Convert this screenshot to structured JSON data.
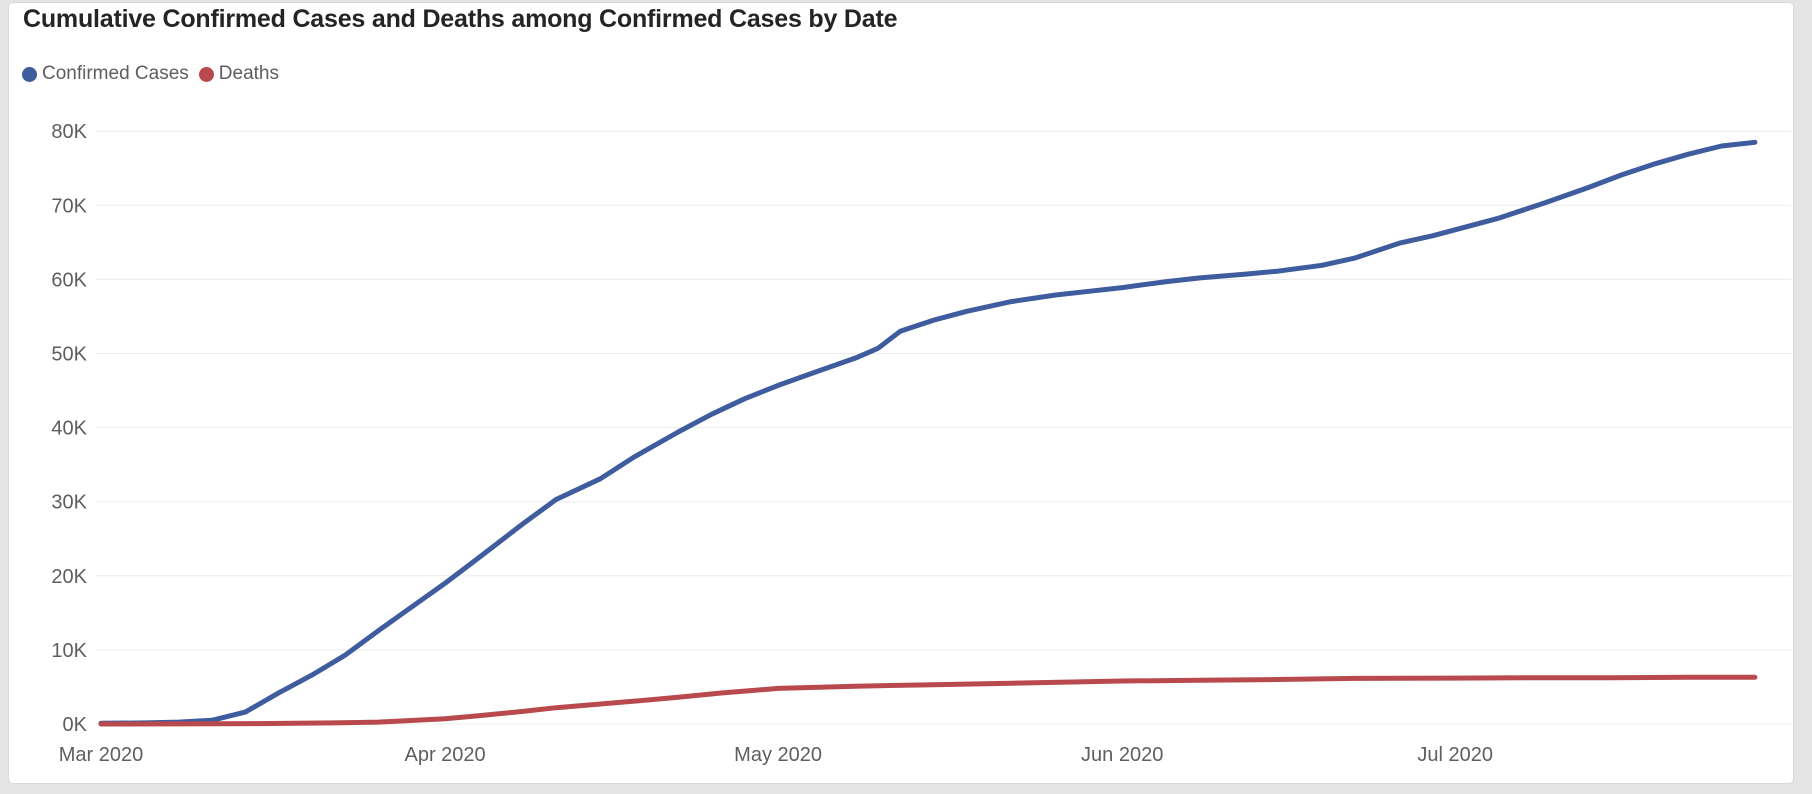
{
  "page": {
    "background_color": "#e4e4e4",
    "card_background_color": "#ffffff"
  },
  "chart_data": {
    "type": "line",
    "title": "Cumulative Confirmed Cases and Deaths among Confirmed Cases by Date",
    "legend": {
      "position": "top-left",
      "items": [
        "Confirmed Cases",
        "Deaths"
      ]
    },
    "grid": "horizontal-only",
    "colors": {
      "confirmed_cases": "#3E5C9E",
      "deaths": "#B84A4D",
      "title_text": "#252423",
      "axis_text": "#605E5C",
      "gridline": "#ECECEC"
    },
    "x_axis": {
      "label": "",
      "type": "date",
      "start": "2020-03-01",
      "end": "2020-08-01",
      "tick_dates": [
        "2020-03-01",
        "2020-04-01",
        "2020-05-01",
        "2020-06-01",
        "2020-07-01"
      ],
      "tick_labels": [
        "Mar 2020",
        "Apr 2020",
        "May 2020",
        "Jun 2020",
        "Jul 2020"
      ]
    },
    "y_axis": {
      "label": "",
      "min": 0,
      "max": 80000,
      "tick_interval": 10000,
      "tick_labels": [
        "0K",
        "10K",
        "20K",
        "30K",
        "40K",
        "50K",
        "60K",
        "70K",
        "80K"
      ]
    },
    "series": [
      {
        "name": "Confirmed Cases",
        "color": "#3E5C9E",
        "points": [
          {
            "date": "2020-03-01",
            "value": 100
          },
          {
            "date": "2020-03-05",
            "value": 150
          },
          {
            "date": "2020-03-08",
            "value": 250
          },
          {
            "date": "2020-03-11",
            "value": 500
          },
          {
            "date": "2020-03-14",
            "value": 1600
          },
          {
            "date": "2020-03-17",
            "value": 4200
          },
          {
            "date": "2020-03-20",
            "value": 6600
          },
          {
            "date": "2020-03-23",
            "value": 9300
          },
          {
            "date": "2020-03-26",
            "value": 12600
          },
          {
            "date": "2020-03-29",
            "value": 15800
          },
          {
            "date": "2020-04-01",
            "value": 19000
          },
          {
            "date": "2020-04-04",
            "value": 22400
          },
          {
            "date": "2020-04-08",
            "value": 27000
          },
          {
            "date": "2020-04-11",
            "value": 30300
          },
          {
            "date": "2020-04-15",
            "value": 33100
          },
          {
            "date": "2020-04-18",
            "value": 36000
          },
          {
            "date": "2020-04-22",
            "value": 39400
          },
          {
            "date": "2020-04-25",
            "value": 41800
          },
          {
            "date": "2020-04-28",
            "value": 43900
          },
          {
            "date": "2020-05-01",
            "value": 45700
          },
          {
            "date": "2020-05-04",
            "value": 47300
          },
          {
            "date": "2020-05-08",
            "value": 49400
          },
          {
            "date": "2020-05-10",
            "value": 50700
          },
          {
            "date": "2020-05-12",
            "value": 53000
          },
          {
            "date": "2020-05-15",
            "value": 54500
          },
          {
            "date": "2020-05-18",
            "value": 55700
          },
          {
            "date": "2020-05-22",
            "value": 57000
          },
          {
            "date": "2020-05-26",
            "value": 57900
          },
          {
            "date": "2020-05-29",
            "value": 58400
          },
          {
            "date": "2020-06-01",
            "value": 58900
          },
          {
            "date": "2020-06-05",
            "value": 59700
          },
          {
            "date": "2020-06-08",
            "value": 60200
          },
          {
            "date": "2020-06-12",
            "value": 60700
          },
          {
            "date": "2020-06-15",
            "value": 61100
          },
          {
            "date": "2020-06-19",
            "value": 61900
          },
          {
            "date": "2020-06-22",
            "value": 62900
          },
          {
            "date": "2020-06-26",
            "value": 64900
          },
          {
            "date": "2020-06-29",
            "value": 65900
          },
          {
            "date": "2020-07-02",
            "value": 67100
          },
          {
            "date": "2020-07-05",
            "value": 68300
          },
          {
            "date": "2020-07-09",
            "value": 70300
          },
          {
            "date": "2020-07-13",
            "value": 72400
          },
          {
            "date": "2020-07-16",
            "value": 74100
          },
          {
            "date": "2020-07-19",
            "value": 75600
          },
          {
            "date": "2020-07-22",
            "value": 76900
          },
          {
            "date": "2020-07-25",
            "value": 78000
          },
          {
            "date": "2020-07-28",
            "value": 78500
          }
        ]
      },
      {
        "name": "Deaths",
        "color": "#B84A4D",
        "points": [
          {
            "date": "2020-03-01",
            "value": 0
          },
          {
            "date": "2020-03-08",
            "value": 20
          },
          {
            "date": "2020-03-15",
            "value": 60
          },
          {
            "date": "2020-03-22",
            "value": 150
          },
          {
            "date": "2020-03-26",
            "value": 250
          },
          {
            "date": "2020-04-01",
            "value": 700
          },
          {
            "date": "2020-04-04",
            "value": 1100
          },
          {
            "date": "2020-04-08",
            "value": 1700
          },
          {
            "date": "2020-04-11",
            "value": 2200
          },
          {
            "date": "2020-04-15",
            "value": 2700
          },
          {
            "date": "2020-04-19",
            "value": 3200
          },
          {
            "date": "2020-04-22",
            "value": 3600
          },
          {
            "date": "2020-04-26",
            "value": 4200
          },
          {
            "date": "2020-05-01",
            "value": 4800
          },
          {
            "date": "2020-05-08",
            "value": 5100
          },
          {
            "date": "2020-05-15",
            "value": 5300
          },
          {
            "date": "2020-05-22",
            "value": 5500
          },
          {
            "date": "2020-06-01",
            "value": 5800
          },
          {
            "date": "2020-06-08",
            "value": 5900
          },
          {
            "date": "2020-06-15",
            "value": 6000
          },
          {
            "date": "2020-06-22",
            "value": 6150
          },
          {
            "date": "2020-07-01",
            "value": 6200
          },
          {
            "date": "2020-07-08",
            "value": 6250
          },
          {
            "date": "2020-07-15",
            "value": 6250
          },
          {
            "date": "2020-07-22",
            "value": 6300
          },
          {
            "date": "2020-07-28",
            "value": 6300
          }
        ]
      }
    ]
  }
}
